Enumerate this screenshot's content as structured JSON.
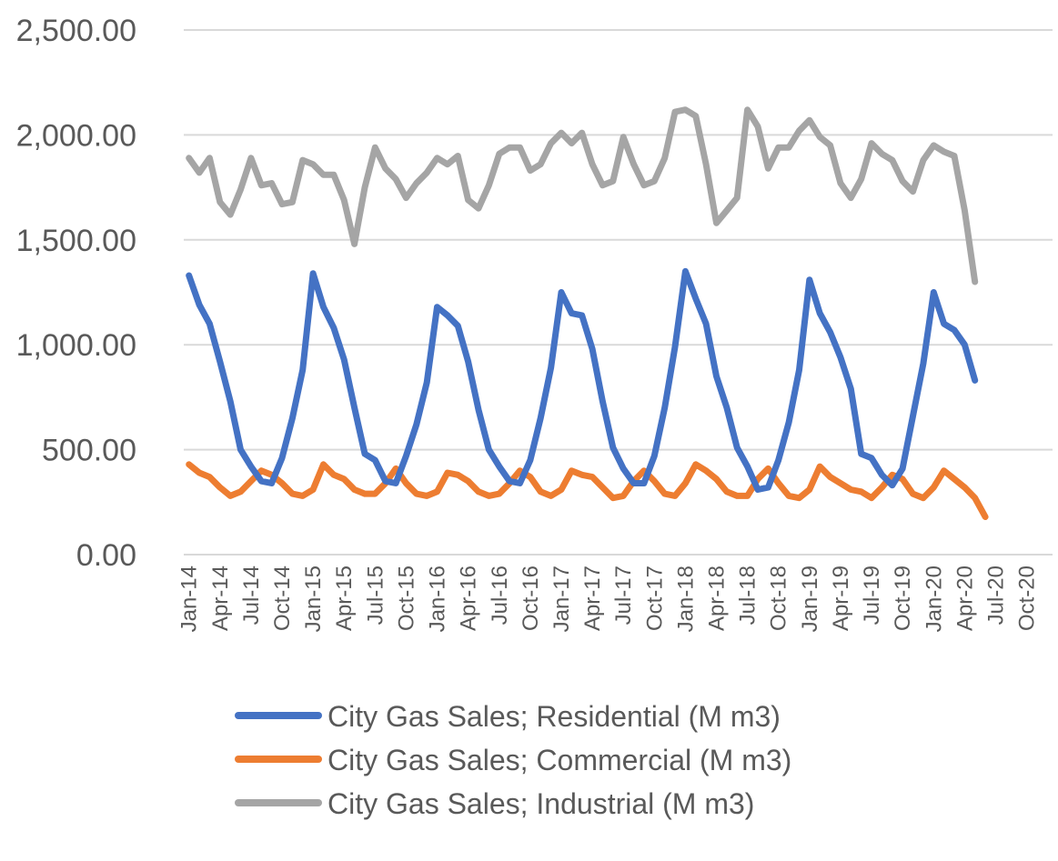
{
  "chart_data": {
    "type": "line",
    "title": "",
    "xlabel": "",
    "ylabel": "",
    "ylim": [
      0,
      2500
    ],
    "y_ticks": [
      "0.00",
      "500.00",
      "1,000.00",
      "1,500.00",
      "2,000.00",
      "2,500.00"
    ],
    "y_tick_values": [
      0,
      500,
      1000,
      1500,
      2000,
      2500
    ],
    "x_tick_labels": [
      "Jan-14",
      "Apr-14",
      "Jul-14",
      "Oct-14",
      "Jan-15",
      "Apr-15",
      "Jul-15",
      "Oct-15",
      "Jan-16",
      "Apr-16",
      "Jul-16",
      "Oct-16",
      "Jan-17",
      "Apr-17",
      "Jul-17",
      "Oct-17",
      "Jan-18",
      "Apr-18",
      "Jul-18",
      "Oct-18",
      "Jan-19",
      "Apr-19",
      "Jul-19",
      "Oct-19",
      "Jan-20",
      "Apr-20",
      "Jul-20",
      "Oct-20"
    ],
    "x_period_count": 84,
    "grid": "horizontal",
    "legend_position": "bottom",
    "series": [
      {
        "name": "City Gas Sales; Residential (M m3)",
        "color": "#4472C4",
        "values": [
          1330,
          1190,
          1100,
          920,
          730,
          500,
          420,
          350,
          340,
          460,
          650,
          880,
          1340,
          1180,
          1080,
          930,
          700,
          480,
          450,
          350,
          340,
          470,
          620,
          820,
          1180,
          1140,
          1090,
          920,
          690,
          500,
          420,
          350,
          340,
          450,
          650,
          890,
          1250,
          1150,
          1140,
          980,
          730,
          510,
          410,
          340,
          340,
          470,
          700,
          990,
          1350,
          1220,
          1100,
          850,
          700,
          510,
          420,
          310,
          320,
          450,
          630,
          880,
          1310,
          1150,
          1060,
          940,
          790,
          480,
          460,
          380,
          330,
          410,
          660,
          910,
          1250,
          1100,
          1070,
          1000,
          830
        ]
      },
      {
        "name": "City Gas Sales; Commercial (M m3)",
        "color": "#ED7D31",
        "values": [
          430,
          390,
          370,
          320,
          280,
          300,
          350,
          400,
          380,
          340,
          290,
          280,
          310,
          430,
          380,
          360,
          310,
          290,
          290,
          340,
          410,
          340,
          290,
          280,
          300,
          390,
          380,
          350,
          300,
          280,
          290,
          340,
          400,
          370,
          300,
          280,
          310,
          400,
          380,
          370,
          320,
          270,
          280,
          350,
          400,
          350,
          290,
          280,
          340,
          430,
          400,
          360,
          300,
          280,
          280,
          360,
          410,
          340,
          280,
          270,
          310,
          420,
          370,
          340,
          310,
          300,
          270,
          320,
          380,
          360,
          290,
          270,
          320,
          400,
          360,
          320,
          270,
          180
        ]
      },
      {
        "name": "City Gas Sales; Industrial (M m3)",
        "color": "#A5A5A5",
        "values": [
          1890,
          1820,
          1890,
          1680,
          1620,
          1740,
          1890,
          1760,
          1770,
          1670,
          1680,
          1880,
          1860,
          1810,
          1810,
          1690,
          1480,
          1750,
          1940,
          1840,
          1790,
          1700,
          1770,
          1820,
          1890,
          1860,
          1900,
          1690,
          1650,
          1760,
          1910,
          1940,
          1940,
          1830,
          1860,
          1960,
          2010,
          1960,
          2010,
          1860,
          1760,
          1780,
          1990,
          1860,
          1760,
          1780,
          1890,
          2110,
          2120,
          2090,
          1860,
          1580,
          1640,
          1700,
          2120,
          2040,
          1840,
          1940,
          1940,
          2020,
          2070,
          1990,
          1950,
          1770,
          1700,
          1790,
          1960,
          1910,
          1880,
          1780,
          1730,
          1880,
          1950,
          1920,
          1900,
          1640,
          1300
        ]
      }
    ]
  }
}
